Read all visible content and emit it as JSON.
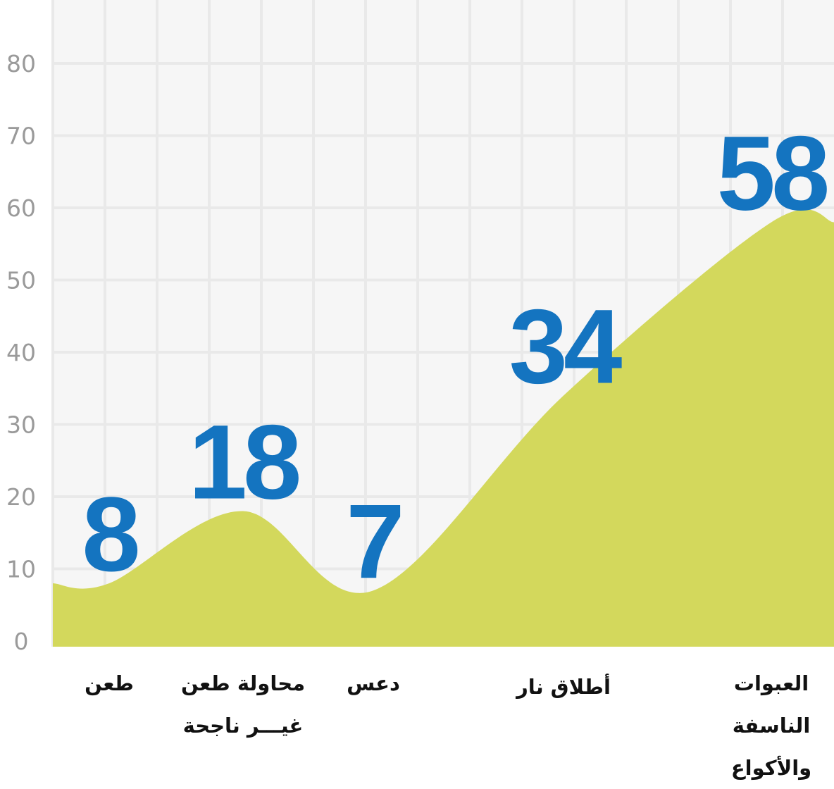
{
  "chart_data": {
    "type": "area",
    "categories": [
      "طعن",
      "محاولة طعن\nغيـــر ناجحة",
      "دعس",
      "أطلاق نار",
      "العبوات\nالناسفة\nوالأكواع"
    ],
    "values": [
      8,
      18,
      7,
      34,
      58
    ],
    "color": "#d3d85c",
    "label_color": "#1474c0",
    "ylim": [
      0,
      80
    ],
    "yticks": [
      0,
      10,
      20,
      30,
      40,
      50,
      60,
      70,
      80
    ],
    "grid": true
  }
}
